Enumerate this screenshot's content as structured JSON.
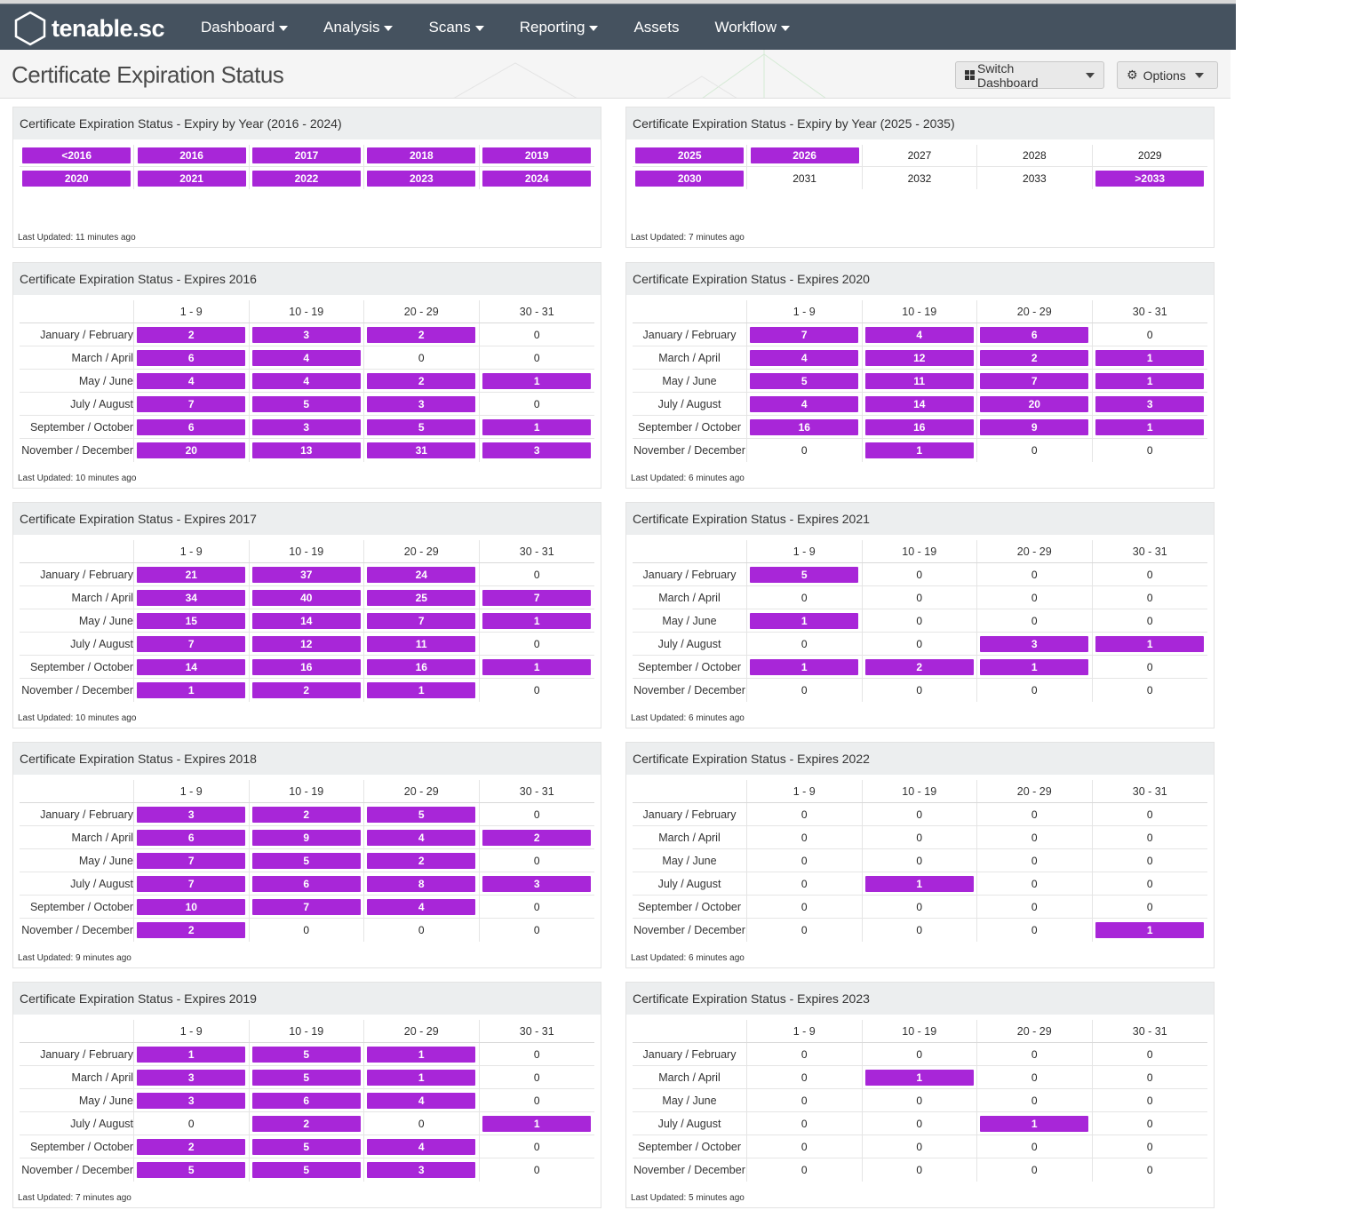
{
  "app": {
    "brand": "tenable.sc",
    "nav": [
      {
        "label": "Dashboard",
        "dropdown": true
      },
      {
        "label": "Analysis",
        "dropdown": true
      },
      {
        "label": "Scans",
        "dropdown": true
      },
      {
        "label": "Reporting",
        "dropdown": true
      },
      {
        "label": "Assets",
        "dropdown": false
      },
      {
        "label": "Workflow",
        "dropdown": true
      }
    ]
  },
  "header": {
    "title": "Certificate Expiration Status",
    "switch_label": "Switch Dashboard",
    "options_label": "Options"
  },
  "colors": {
    "accent": "#a826d8",
    "nav_bg": "#45525f"
  },
  "columns": [
    "1 - 9",
    "10 - 19",
    "20 - 29",
    "30 - 31"
  ],
  "months": [
    "January / February",
    "March / April",
    "May / June",
    "July / August",
    "September / October",
    "November / December"
  ],
  "year_panels": [
    {
      "title": "Certificate Expiration Status - Expiry by Year (2016 - 2024)",
      "updated": "Last Updated: 11 minutes ago",
      "rows": [
        [
          {
            "label": "<2016",
            "hl": true
          },
          {
            "label": "2016",
            "hl": true
          },
          {
            "label": "2017",
            "hl": true
          },
          {
            "label": "2018",
            "hl": true
          },
          {
            "label": "2019",
            "hl": true
          }
        ],
        [
          {
            "label": "2020",
            "hl": true
          },
          {
            "label": "2021",
            "hl": true
          },
          {
            "label": "2022",
            "hl": true
          },
          {
            "label": "2023",
            "hl": true
          },
          {
            "label": "2024",
            "hl": true
          }
        ]
      ]
    },
    {
      "title": "Certificate Expiration Status - Expiry by Year (2025 - 2035)",
      "updated": "Last Updated: 7 minutes ago",
      "rows": [
        [
          {
            "label": "2025",
            "hl": true
          },
          {
            "label": "2026",
            "hl": true
          },
          {
            "label": "2027",
            "hl": false
          },
          {
            "label": "2028",
            "hl": false
          },
          {
            "label": "2029",
            "hl": false
          }
        ],
        [
          {
            "label": "2030",
            "hl": true
          },
          {
            "label": "2031",
            "hl": false
          },
          {
            "label": "2032",
            "hl": false
          },
          {
            "label": "2033",
            "hl": false
          },
          {
            "label": ">2033",
            "hl": true
          }
        ]
      ]
    }
  ],
  "month_panels": [
    {
      "title": "Certificate Expiration Status - Expires 2016",
      "updated": "Last Updated: 10 minutes ago",
      "values": [
        [
          2,
          3,
          2,
          0
        ],
        [
          6,
          4,
          0,
          0
        ],
        [
          4,
          4,
          2,
          1
        ],
        [
          7,
          5,
          3,
          0
        ],
        [
          6,
          3,
          5,
          1
        ],
        [
          20,
          13,
          31,
          3
        ]
      ]
    },
    {
      "title": "Certificate Expiration Status - Expires 2020",
      "updated": "Last Updated: 6 minutes ago",
      "values": [
        [
          7,
          4,
          6,
          0
        ],
        [
          4,
          12,
          2,
          1
        ],
        [
          5,
          11,
          7,
          1
        ],
        [
          4,
          14,
          20,
          3
        ],
        [
          16,
          16,
          9,
          1
        ],
        [
          0,
          1,
          0,
          0
        ]
      ]
    },
    {
      "title": "Certificate Expiration Status - Expires 2017",
      "updated": "Last Updated: 10 minutes ago",
      "values": [
        [
          21,
          37,
          24,
          0
        ],
        [
          34,
          40,
          25,
          7
        ],
        [
          15,
          14,
          7,
          1
        ],
        [
          7,
          12,
          11,
          0
        ],
        [
          14,
          16,
          16,
          1
        ],
        [
          1,
          2,
          1,
          0
        ]
      ]
    },
    {
      "title": "Certificate Expiration Status - Expires 2021",
      "updated": "Last Updated: 6 minutes ago",
      "values": [
        [
          5,
          0,
          0,
          0
        ],
        [
          0,
          0,
          0,
          0
        ],
        [
          1,
          0,
          0,
          0
        ],
        [
          0,
          0,
          3,
          1
        ],
        [
          1,
          2,
          1,
          0
        ],
        [
          0,
          0,
          0,
          0
        ]
      ]
    },
    {
      "title": "Certificate Expiration Status - Expires 2018",
      "updated": "Last Updated: 9 minutes ago",
      "values": [
        [
          3,
          2,
          5,
          0
        ],
        [
          6,
          9,
          4,
          2
        ],
        [
          7,
          5,
          2,
          0
        ],
        [
          7,
          6,
          8,
          3
        ],
        [
          10,
          7,
          4,
          0
        ],
        [
          2,
          0,
          0,
          0
        ]
      ]
    },
    {
      "title": "Certificate Expiration Status - Expires 2022",
      "updated": "Last Updated: 6 minutes ago",
      "values": [
        [
          0,
          0,
          0,
          0
        ],
        [
          0,
          0,
          0,
          0
        ],
        [
          0,
          0,
          0,
          0
        ],
        [
          0,
          1,
          0,
          0
        ],
        [
          0,
          0,
          0,
          0
        ],
        [
          0,
          0,
          0,
          1
        ]
      ]
    },
    {
      "title": "Certificate Expiration Status - Expires 2019",
      "updated": "Last Updated: 7 minutes ago",
      "values": [
        [
          1,
          5,
          1,
          0
        ],
        [
          3,
          5,
          1,
          0
        ],
        [
          3,
          6,
          4,
          0
        ],
        [
          0,
          2,
          0,
          1
        ],
        [
          2,
          5,
          4,
          0
        ],
        [
          5,
          5,
          3,
          0
        ]
      ]
    },
    {
      "title": "Certificate Expiration Status - Expires 2023",
      "updated": "Last Updated: 5 minutes ago",
      "values": [
        [
          0,
          0,
          0,
          0
        ],
        [
          0,
          1,
          0,
          0
        ],
        [
          0,
          0,
          0,
          0
        ],
        [
          0,
          0,
          1,
          0
        ],
        [
          0,
          0,
          0,
          0
        ],
        [
          0,
          0,
          0,
          0
        ]
      ]
    }
  ]
}
